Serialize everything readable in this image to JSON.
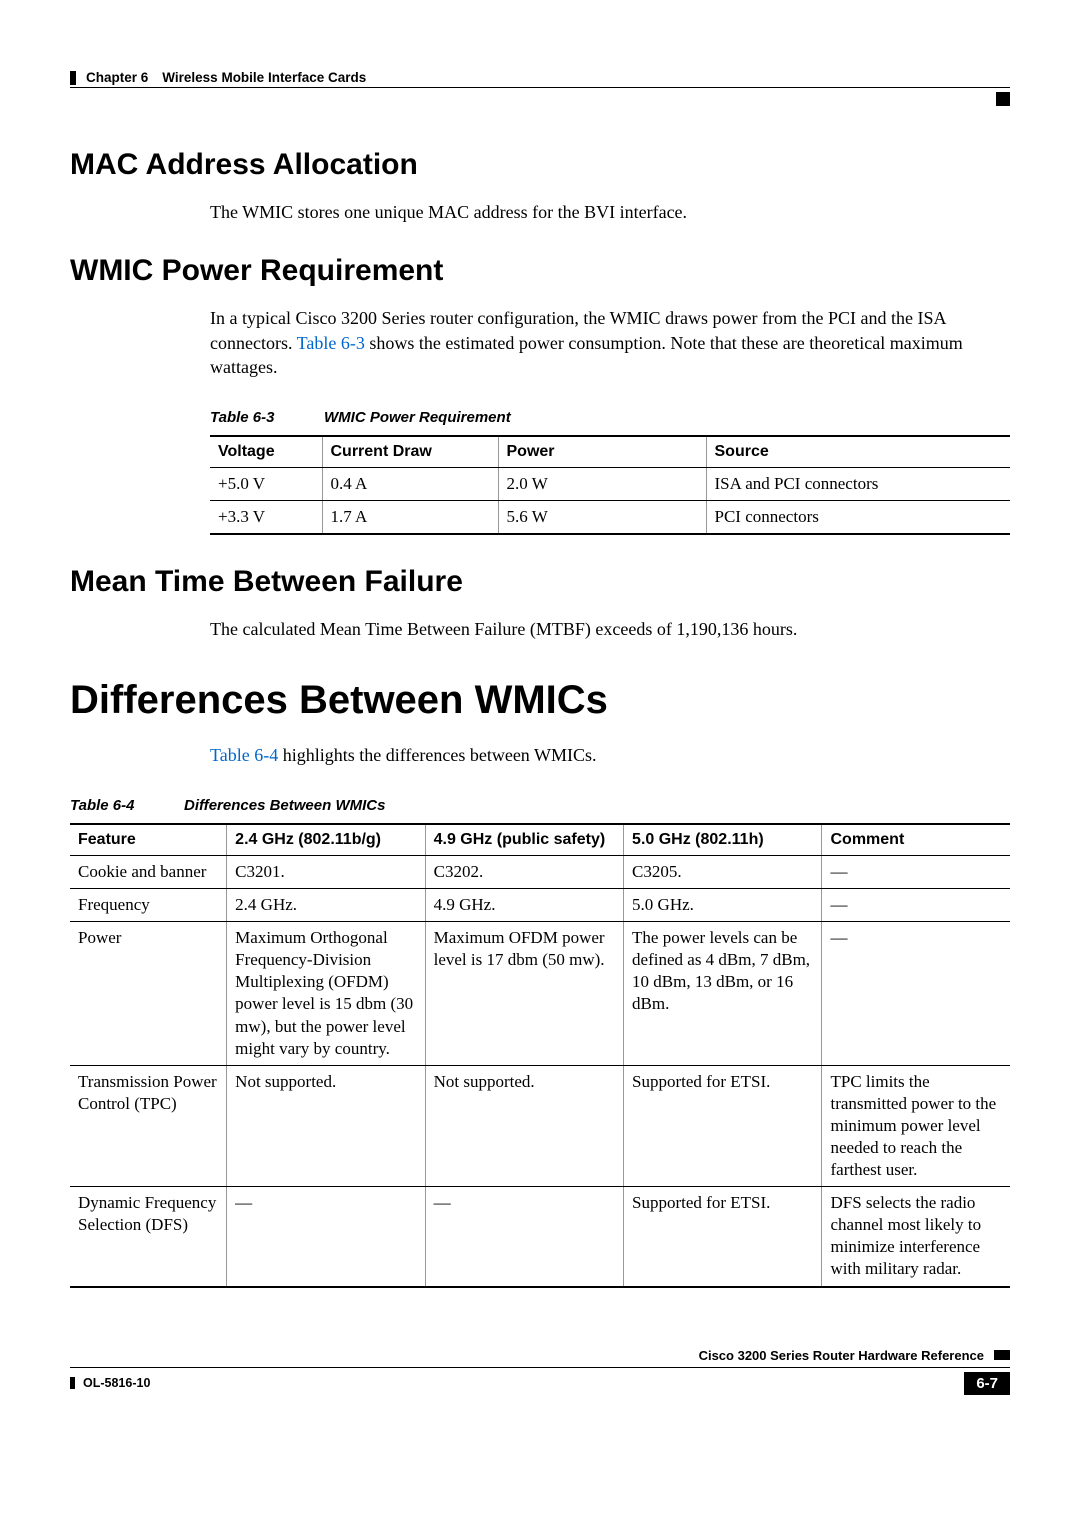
{
  "header": {
    "chapter_label": "Chapter 6",
    "chapter_title": "Wireless Mobile Interface Cards"
  },
  "sections": {
    "mac": {
      "heading": "MAC Address Allocation",
      "body": "The WMIC stores one unique MAC address for the BVI interface."
    },
    "power_req": {
      "heading": "WMIC Power Requirement",
      "body_pre": "In a typical Cisco 3200 Series router configuration, the WMIC draws power from the PCI and the ISA connectors. ",
      "body_link": "Table 6-3",
      "body_post": " shows the estimated power consumption. Note that these are theoretical maximum wattages.",
      "table_caption_label": "Table 6-3",
      "table_caption_title": "WMIC Power Requirement",
      "columns": [
        "Voltage",
        "Current Draw",
        "Power",
        "Source"
      ],
      "rows": [
        [
          "+5.0 V",
          "0.4 A",
          "2.0 W",
          "ISA and PCI connectors"
        ],
        [
          "+3.3 V",
          "1.7 A",
          "5.6 W",
          "PCI connectors"
        ]
      ],
      "col_widths": [
        "14%",
        "22%",
        "26%",
        "38%"
      ]
    },
    "mtbf": {
      "heading": "Mean Time Between Failure",
      "body": "The calculated Mean Time Between Failure (MTBF) exceeds of 1,190,136 hours."
    },
    "diffs": {
      "heading": "Differences Between WMICs",
      "body_link": "Table 6-4",
      "body_post": " highlights the differences between WMICs.",
      "table_caption_label": "Table 6-4",
      "table_caption_title": "Differences Between WMICs",
      "columns": [
        "Feature",
        "2.4 GHz (802.11b/g)",
        "4.9 GHz (public safety)",
        "5.0 GHz (802.11h)",
        "Comment"
      ],
      "col_widths": [
        "15%",
        "19%",
        "19%",
        "19%",
        "18%"
      ],
      "rows": [
        [
          "Cookie and banner",
          "C3201.",
          "C3202.",
          "C3205.",
          "—"
        ],
        [
          "Frequency",
          "2.4 GHz.",
          "4.9 GHz.",
          "5.0 GHz.",
          "—"
        ],
        [
          "Power",
          "Maximum Orthogonal Frequency-Division Multiplexing (OFDM) power level is 15 dbm (30 mw), but the power level might vary by country.",
          "Maximum OFDM power level is 17 dbm (50 mw).",
          "The power levels can be defined as 4 dBm, 7 dBm, 10 dBm, 13 dBm, or 16 dBm.",
          "—"
        ],
        [
          "Transmission Power Control (TPC)",
          "Not supported.",
          "Not supported.",
          "Supported for ETSI.",
          "TPC limits the transmitted power to the minimum power level needed to reach the farthest user."
        ],
        [
          "Dynamic Frequency Selection (DFS)",
          "—",
          "—",
          "Supported for ETSI.",
          "DFS selects the radio channel most likely to minimize interference with military radar."
        ]
      ]
    }
  },
  "footer": {
    "book_title": "Cisco 3200 Series Router Hardware Reference",
    "doc_id": "OL-5816-10",
    "page_number": "6-7"
  },
  "colors": {
    "link": "#0066cc",
    "text": "#000000",
    "rule_light": "#999999"
  }
}
